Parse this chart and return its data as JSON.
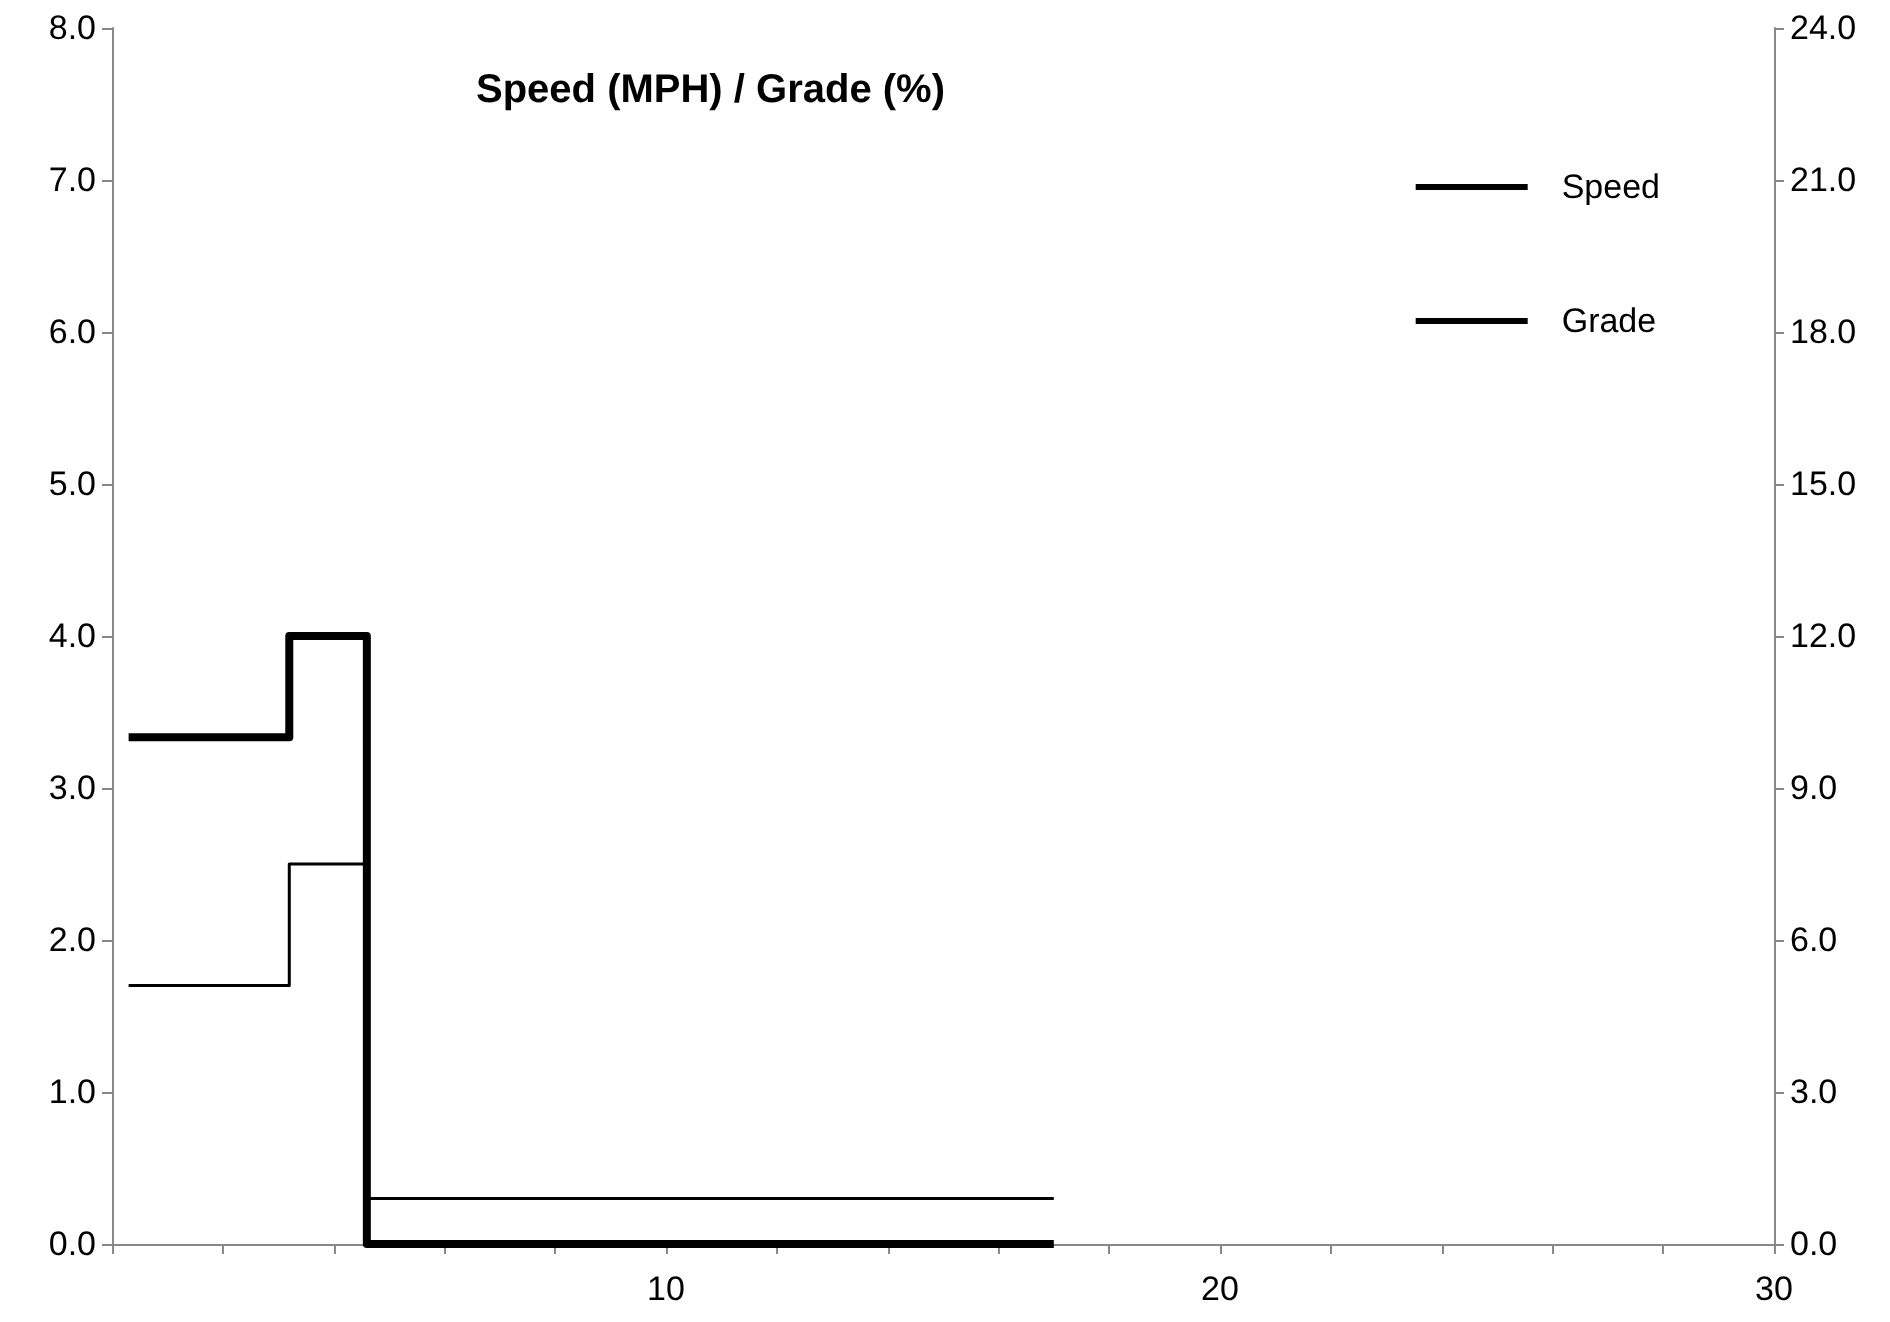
{
  "chart_data": {
    "type": "step",
    "title": "Speed (MPH) / Grade (%)",
    "xlim": [
      0,
      30
    ],
    "xticks": [
      {
        "value": 0,
        "label": null
      },
      {
        "value": 2,
        "label": null
      },
      {
        "value": 4,
        "label": null
      },
      {
        "value": 6,
        "label": null
      },
      {
        "value": 8,
        "label": null
      },
      10,
      {
        "value": 12,
        "label": null
      },
      {
        "value": 14,
        "label": null
      },
      {
        "value": 16,
        "label": null
      },
      {
        "value": 18,
        "label": null
      },
      20,
      {
        "value": 22,
        "label": null
      },
      {
        "value": 24,
        "label": null
      },
      {
        "value": 26,
        "label": null
      },
      {
        "value": 28,
        "label": null
      },
      30
    ],
    "ylim": [
      0,
      8
    ],
    "yticks": [
      {
        "value": 0,
        "label": "0.0"
      },
      {
        "value": 1,
        "label": "1.0"
      },
      {
        "value": 2,
        "label": "2.0"
      },
      {
        "value": 3,
        "label": "3.0"
      },
      {
        "value": 4,
        "label": "4.0"
      },
      {
        "value": 5,
        "label": "5.0"
      },
      {
        "value": 6,
        "label": "6.0"
      },
      {
        "value": 7,
        "label": "7.0"
      },
      {
        "value": 8,
        "label": "8.0"
      }
    ],
    "y2lim": [
      0,
      24
    ],
    "y2ticks": [
      {
        "value": 0,
        "label": "0.0"
      },
      {
        "value": 3,
        "label": "3.0"
      },
      {
        "value": 6,
        "label": "6.0"
      },
      {
        "value": 9,
        "label": "9.0"
      },
      {
        "value": 12,
        "label": "12.0"
      },
      {
        "value": 15,
        "label": "15.0"
      },
      {
        "value": 18,
        "label": "18.0"
      },
      {
        "value": 21,
        "label": "21.0"
      },
      {
        "value": 24,
        "label": "24.0"
      }
    ],
    "grid": false,
    "legend": "top right",
    "marker": "none",
    "line_style": "solid",
    "series": [
      {
        "name": "Speed",
        "color": "#000000",
        "x": [
          0.3,
          3.2,
          4.6,
          17
        ],
        "values": [
          1.7,
          2.5,
          0.3,
          0.3
        ]
      },
      {
        "name": "Grade",
        "color": "#000000",
        "axis": "y2",
        "x": [
          0.3,
          3.2,
          4.6,
          17
        ],
        "values": [
          10,
          12,
          0,
          0
        ]
      }
    ]
  }
}
